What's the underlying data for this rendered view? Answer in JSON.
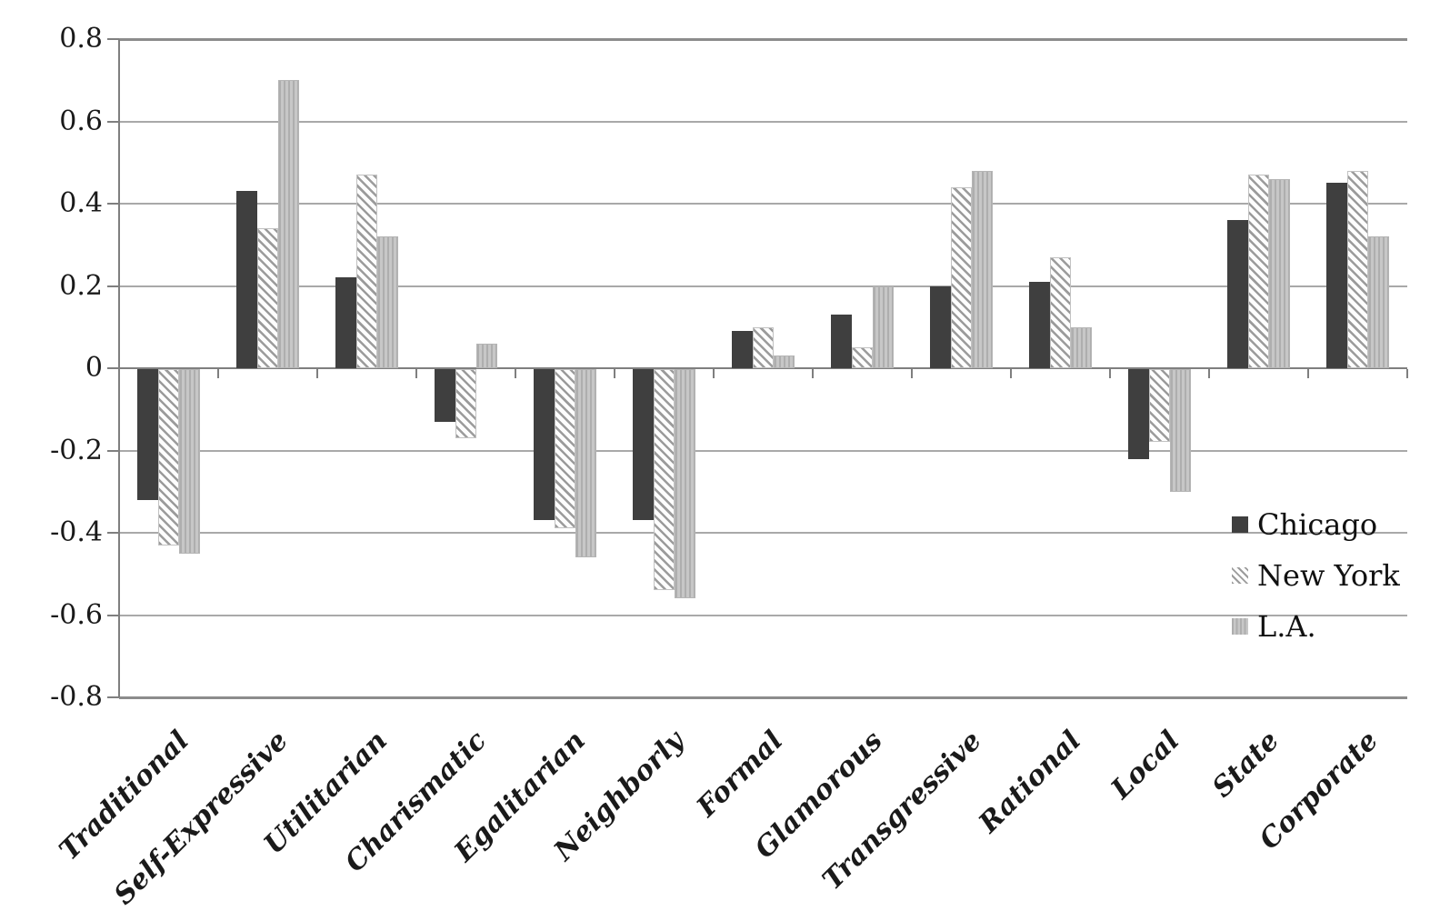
{
  "chart_data": {
    "type": "bar",
    "title": "",
    "xlabel": "",
    "ylabel": "",
    "categories": [
      "Traditional",
      "Self-Expressive",
      "Utilitarian",
      "Charismatic",
      "Egalitarian",
      "Neighborly",
      "Formal",
      "Glamorous",
      "Transgressive",
      "Rational",
      "Local",
      "State",
      "Corporate"
    ],
    "series": [
      {
        "name": "Chicago",
        "pattern": "solid-dark-gray",
        "color": "#3f3f3f",
        "values": [
          -0.32,
          0.43,
          0.22,
          -0.13,
          -0.37,
          -0.37,
          0.09,
          0.13,
          0.2,
          0.21,
          -0.22,
          0.36,
          0.45
        ]
      },
      {
        "name": "New York",
        "pattern": "diagonal-hatch",
        "color": "#9b9b9b",
        "values": [
          -0.43,
          0.34,
          0.47,
          -0.17,
          -0.39,
          -0.54,
          0.1,
          0.05,
          0.44,
          0.27,
          -0.18,
          0.47,
          0.48
        ]
      },
      {
        "name": "L.A.",
        "pattern": "light-vertical-stripe",
        "color": "#c0c0c0",
        "values": [
          -0.45,
          0.7,
          0.32,
          0.06,
          -0.46,
          -0.56,
          0.03,
          0.2,
          0.48,
          0.1,
          -0.3,
          0.46,
          0.32
        ]
      }
    ],
    "ylim": [
      -0.8,
      0.8
    ],
    "ytick_step": 0.2,
    "ytick_labels": [
      "0.8",
      "0.6",
      "0.4",
      "0.2",
      "0",
      "-0.2",
      "-0.4",
      "-0.6",
      "-0.8"
    ],
    "grid": "horizontal",
    "legend_position": "right-middle",
    "colors": {
      "background": "#ffffff",
      "gridline": "#a9a9a9",
      "axis": "#7f7f7f",
      "text": "#1a1a1a"
    }
  }
}
